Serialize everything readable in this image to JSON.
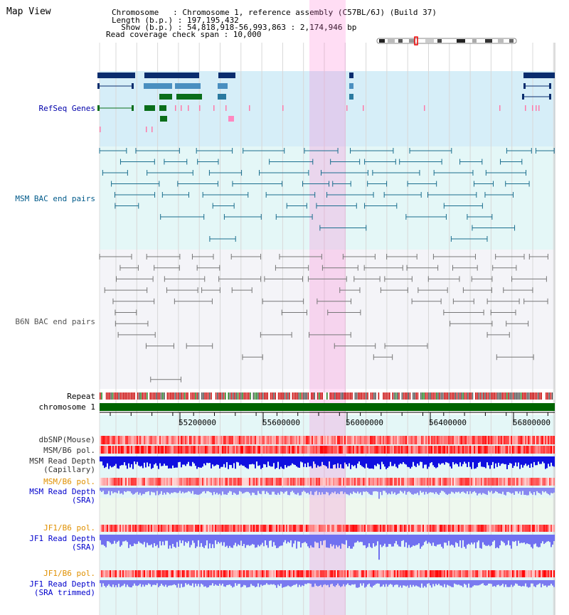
{
  "header": {
    "title": "Map View",
    "chromosome_line": "Chromosome   : Chromosome 1, reference assembly (C57BL/6J) (Build 37)",
    "length_line": "Length (b.p.) : 197,195,432",
    "show_line": "  Show (b.p.) : 54,818,918-56,993,863 : 2,174,946 bp",
    "coverage_line": "Read coverage check span : 10,000"
  },
  "tracks": {
    "refseq": "RefSeq Genes",
    "msm_bac": "MSM BAC end pairs",
    "b6n_bac": "B6N BAC end pairs",
    "repeat": "Repeat",
    "chromosome": "chromosome 1",
    "dbsnp": "dbSNP(Mouse)",
    "msm_b6_pol_1": "MSM/B6 pol.",
    "msm_depth_cap_1": "MSM Read Depth",
    "msm_depth_cap_2": "(Capillary)",
    "msm_b6_pol_2": "MSM/B6 pol.",
    "msm_depth_sra_1": "MSM Read Depth",
    "msm_depth_sra_2": "(SRA)",
    "jf1_b6_pol_1": "JF1/B6 pol.",
    "jf1_depth_sra_1": "JF1 Read Depth",
    "jf1_depth_sra_2": "(SRA)",
    "jf1_b6_pol_2": "JF1/B6 pol.",
    "jf1_depth_trim_1": "JF1 Read Depth",
    "jf1_depth_trim_2": "(SRA trimmed)"
  },
  "axis": {
    "ticks": [
      "55200000",
      "55600000",
      "56000000",
      "56400000",
      "56800000"
    ]
  },
  "colors": {
    "refseq_label": "#0000aa",
    "msm_label": "#005a8a",
    "b6n_label": "#555555",
    "orange_label": "#e09000",
    "blue_label": "#0000cc",
    "highlight": "#ff66cc",
    "chromosome_bar": "#006400",
    "refseq_bg": "#d6eef8",
    "msm_bg": "#e4f7f7",
    "b6n_bg": "#f4f4f8"
  }
}
